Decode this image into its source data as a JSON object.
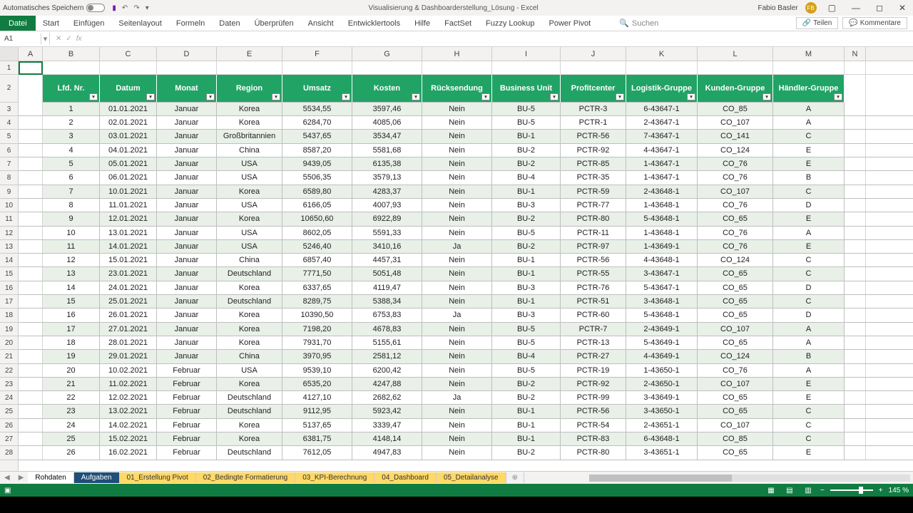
{
  "titlebar": {
    "autosave": "Automatisches Speichern",
    "doc_title": "Visualisierung & Dashboarderstellung_Lösung - Excel",
    "user": "Fabio Basler",
    "user_initials": "FB"
  },
  "ribbon": {
    "file": "Datei",
    "tabs": [
      "Start",
      "Einfügen",
      "Seitenlayout",
      "Formeln",
      "Daten",
      "Überprüfen",
      "Ansicht",
      "Entwicklertools",
      "Hilfe",
      "FactSet",
      "Fuzzy Lookup",
      "Power Pivot"
    ],
    "search": "Suchen",
    "share": "Teilen",
    "comments": "Kommentare"
  },
  "formula": {
    "cellref": "A1"
  },
  "columns": [
    "A",
    "B",
    "C",
    "D",
    "E",
    "F",
    "G",
    "H",
    "I",
    "J",
    "K",
    "L",
    "M",
    "N"
  ],
  "headers": [
    "Lfd. Nr.",
    "Datum",
    "Monat",
    "Region",
    "Umsatz",
    "Kosten",
    "Rücksendung",
    "Business Unit",
    "Profitcenter",
    "Logistik-Gruppe",
    "Kunden-Gruppe",
    "Händler-Gruppe"
  ],
  "rows": [
    [
      "1",
      "01.01.2021",
      "Januar",
      "Korea",
      "5534,55",
      "3597,46",
      "Nein",
      "BU-5",
      "PCTR-3",
      "6-43647-1",
      "CO_85",
      "A"
    ],
    [
      "2",
      "02.01.2021",
      "Januar",
      "Korea",
      "6284,70",
      "4085,06",
      "Nein",
      "BU-5",
      "PCTR-1",
      "2-43647-1",
      "CO_107",
      "A"
    ],
    [
      "3",
      "03.01.2021",
      "Januar",
      "Großbritannien",
      "5437,65",
      "3534,47",
      "Nein",
      "BU-1",
      "PCTR-56",
      "7-43647-1",
      "CO_141",
      "C"
    ],
    [
      "4",
      "04.01.2021",
      "Januar",
      "China",
      "8587,20",
      "5581,68",
      "Nein",
      "BU-2",
      "PCTR-92",
      "4-43647-1",
      "CO_124",
      "E"
    ],
    [
      "5",
      "05.01.2021",
      "Januar",
      "USA",
      "9439,05",
      "6135,38",
      "Nein",
      "BU-2",
      "PCTR-85",
      "1-43647-1",
      "CO_76",
      "E"
    ],
    [
      "6",
      "06.01.2021",
      "Januar",
      "USA",
      "5506,35",
      "3579,13",
      "Nein",
      "BU-4",
      "PCTR-35",
      "1-43647-1",
      "CO_76",
      "B"
    ],
    [
      "7",
      "10.01.2021",
      "Januar",
      "Korea",
      "6589,80",
      "4283,37",
      "Nein",
      "BU-1",
      "PCTR-59",
      "2-43648-1",
      "CO_107",
      "C"
    ],
    [
      "8",
      "11.01.2021",
      "Januar",
      "USA",
      "6166,05",
      "4007,93",
      "Nein",
      "BU-3",
      "PCTR-77",
      "1-43648-1",
      "CO_76",
      "D"
    ],
    [
      "9",
      "12.01.2021",
      "Januar",
      "Korea",
      "10650,60",
      "6922,89",
      "Nein",
      "BU-2",
      "PCTR-80",
      "5-43648-1",
      "CO_65",
      "E"
    ],
    [
      "10",
      "13.01.2021",
      "Januar",
      "USA",
      "8602,05",
      "5591,33",
      "Nein",
      "BU-5",
      "PCTR-11",
      "1-43648-1",
      "CO_76",
      "A"
    ],
    [
      "11",
      "14.01.2021",
      "Januar",
      "USA",
      "5246,40",
      "3410,16",
      "Ja",
      "BU-2",
      "PCTR-97",
      "1-43649-1",
      "CO_76",
      "E"
    ],
    [
      "12",
      "15.01.2021",
      "Januar",
      "China",
      "6857,40",
      "4457,31",
      "Nein",
      "BU-1",
      "PCTR-56",
      "4-43648-1",
      "CO_124",
      "C"
    ],
    [
      "13",
      "23.01.2021",
      "Januar",
      "Deutschland",
      "7771,50",
      "5051,48",
      "Nein",
      "BU-1",
      "PCTR-55",
      "3-43647-1",
      "CO_65",
      "C"
    ],
    [
      "14",
      "24.01.2021",
      "Januar",
      "Korea",
      "6337,65",
      "4119,47",
      "Nein",
      "BU-3",
      "PCTR-76",
      "5-43647-1",
      "CO_65",
      "D"
    ],
    [
      "15",
      "25.01.2021",
      "Januar",
      "Deutschland",
      "8289,75",
      "5388,34",
      "Nein",
      "BU-1",
      "PCTR-51",
      "3-43648-1",
      "CO_65",
      "C"
    ],
    [
      "16",
      "26.01.2021",
      "Januar",
      "Korea",
      "10390,50",
      "6753,83",
      "Ja",
      "BU-3",
      "PCTR-60",
      "5-43648-1",
      "CO_65",
      "D"
    ],
    [
      "17",
      "27.01.2021",
      "Januar",
      "Korea",
      "7198,20",
      "4678,83",
      "Nein",
      "BU-5",
      "PCTR-7",
      "2-43649-1",
      "CO_107",
      "A"
    ],
    [
      "18",
      "28.01.2021",
      "Januar",
      "Korea",
      "7931,70",
      "5155,61",
      "Nein",
      "BU-5",
      "PCTR-13",
      "5-43649-1",
      "CO_65",
      "A"
    ],
    [
      "19",
      "29.01.2021",
      "Januar",
      "China",
      "3970,95",
      "2581,12",
      "Nein",
      "BU-4",
      "PCTR-27",
      "4-43649-1",
      "CO_124",
      "B"
    ],
    [
      "20",
      "10.02.2021",
      "Februar",
      "USA",
      "9539,10",
      "6200,42",
      "Nein",
      "BU-5",
      "PCTR-19",
      "1-43650-1",
      "CO_76",
      "A"
    ],
    [
      "21",
      "11.02.2021",
      "Februar",
      "Korea",
      "6535,20",
      "4247,88",
      "Nein",
      "BU-2",
      "PCTR-92",
      "2-43650-1",
      "CO_107",
      "E"
    ],
    [
      "22",
      "12.02.2021",
      "Februar",
      "Deutschland",
      "4127,10",
      "2682,62",
      "Ja",
      "BU-2",
      "PCTR-99",
      "3-43649-1",
      "CO_65",
      "E"
    ],
    [
      "23",
      "13.02.2021",
      "Februar",
      "Deutschland",
      "9112,95",
      "5923,42",
      "Nein",
      "BU-1",
      "PCTR-56",
      "3-43650-1",
      "CO_65",
      "C"
    ],
    [
      "24",
      "14.02.2021",
      "Februar",
      "Korea",
      "5137,65",
      "3339,47",
      "Nein",
      "BU-1",
      "PCTR-54",
      "2-43651-1",
      "CO_107",
      "C"
    ],
    [
      "25",
      "15.02.2021",
      "Februar",
      "Korea",
      "6381,75",
      "4148,14",
      "Nein",
      "BU-1",
      "PCTR-83",
      "6-43648-1",
      "CO_85",
      "C"
    ],
    [
      "26",
      "16.02.2021",
      "Februar",
      "Deutschland",
      "7612,05",
      "4947,83",
      "Nein",
      "BU-2",
      "PCTR-80",
      "3-43651-1",
      "CO_65",
      "E"
    ]
  ],
  "sheets": [
    {
      "name": "Rohdaten",
      "cls": "white"
    },
    {
      "name": "Aufgaben",
      "cls": "blue"
    },
    {
      "name": "01_Erstellung Pivot",
      "cls": "yellow"
    },
    {
      "name": "02_Bedingte Formatierung",
      "cls": "yellow"
    },
    {
      "name": "03_KPI-Berechnung",
      "cls": "yellow"
    },
    {
      "name": "04_Dashboard",
      "cls": "yellow"
    },
    {
      "name": "05_Detailanalyse",
      "cls": "yellow"
    }
  ],
  "statusbar": {
    "zoom": "145 %"
  },
  "colors": {
    "header_bg": "#21a366",
    "stripe": "#e8f0e8",
    "excel_green": "#107c41"
  }
}
